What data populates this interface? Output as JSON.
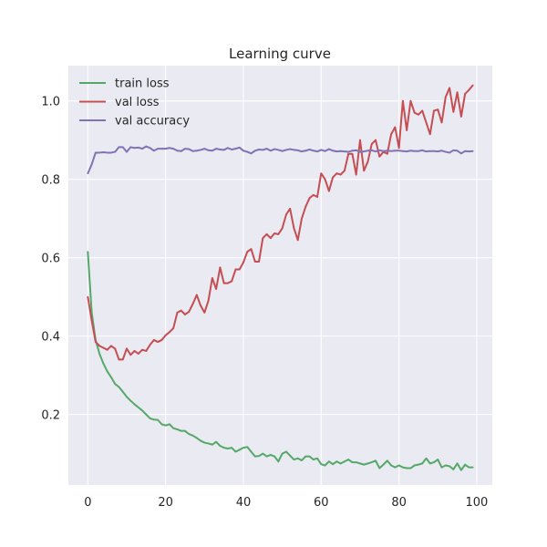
{
  "chart_data": {
    "type": "line",
    "title": "Learning curve",
    "xlabel": "",
    "ylabel": "",
    "xlim": [
      -5,
      104
    ],
    "ylim": [
      0.02,
      1.09
    ],
    "xticks": [
      0,
      20,
      40,
      60,
      80,
      100
    ],
    "yticks": [
      0.2,
      0.4,
      0.6,
      0.8,
      1.0
    ],
    "xtick_labels": [
      "0",
      "20",
      "40",
      "60",
      "80",
      "100"
    ],
    "ytick_labels": [
      "0.2",
      "0.4",
      "0.6",
      "0.8",
      "1.0"
    ],
    "grid": true,
    "legend_position": "top-left",
    "background_color": "#eaeaf2",
    "x": [
      0,
      1,
      2,
      3,
      4,
      5,
      6,
      7,
      8,
      9,
      10,
      11,
      12,
      13,
      14,
      15,
      16,
      17,
      18,
      19,
      20,
      21,
      22,
      23,
      24,
      25,
      26,
      27,
      28,
      29,
      30,
      31,
      32,
      33,
      34,
      35,
      36,
      37,
      38,
      39,
      40,
      41,
      42,
      43,
      44,
      45,
      46,
      47,
      48,
      49,
      50,
      51,
      52,
      53,
      54,
      55,
      56,
      57,
      58,
      59,
      60,
      61,
      62,
      63,
      64,
      65,
      66,
      67,
      68,
      69,
      70,
      71,
      72,
      73,
      74,
      75,
      76,
      77,
      78,
      79,
      80,
      81,
      82,
      83,
      84,
      85,
      86,
      87,
      88,
      89,
      90,
      91,
      92,
      93,
      94,
      95,
      96,
      97,
      98,
      99
    ],
    "series": [
      {
        "name": "train loss",
        "color": "#55a868",
        "values": [
          0.615,
          0.46,
          0.39,
          0.355,
          0.33,
          0.31,
          0.295,
          0.278,
          0.27,
          0.258,
          0.245,
          0.235,
          0.226,
          0.218,
          0.21,
          0.2,
          0.19,
          0.187,
          0.186,
          0.175,
          0.172,
          0.175,
          0.165,
          0.162,
          0.158,
          0.158,
          0.15,
          0.146,
          0.14,
          0.133,
          0.128,
          0.126,
          0.123,
          0.13,
          0.12,
          0.115,
          0.113,
          0.115,
          0.105,
          0.11,
          0.115,
          0.117,
          0.105,
          0.093,
          0.094,
          0.1,
          0.093,
          0.097,
          0.093,
          0.08,
          0.1,
          0.105,
          0.095,
          0.085,
          0.088,
          0.083,
          0.093,
          0.093,
          0.085,
          0.088,
          0.073,
          0.07,
          0.08,
          0.073,
          0.08,
          0.075,
          0.08,
          0.085,
          0.078,
          0.078,
          0.075,
          0.072,
          0.075,
          0.078,
          0.082,
          0.063,
          0.072,
          0.082,
          0.07,
          0.065,
          0.07,
          0.065,
          0.063,
          0.063,
          0.07,
          0.072,
          0.075,
          0.088,
          0.075,
          0.078,
          0.085,
          0.065,
          0.07,
          0.068,
          0.06,
          0.075,
          0.058,
          0.072,
          0.065,
          0.065
        ]
      },
      {
        "name": "val loss",
        "color": "#c44e52",
        "values": [
          0.5,
          0.44,
          0.385,
          0.375,
          0.37,
          0.365,
          0.375,
          0.368,
          0.34,
          0.34,
          0.368,
          0.352,
          0.362,
          0.355,
          0.365,
          0.362,
          0.378,
          0.39,
          0.385,
          0.39,
          0.402,
          0.41,
          0.42,
          0.46,
          0.465,
          0.455,
          0.462,
          0.482,
          0.505,
          0.478,
          0.46,
          0.49,
          0.548,
          0.52,
          0.575,
          0.535,
          0.535,
          0.54,
          0.57,
          0.57,
          0.588,
          0.615,
          0.622,
          0.59,
          0.59,
          0.65,
          0.66,
          0.65,
          0.662,
          0.66,
          0.675,
          0.71,
          0.725,
          0.675,
          0.645,
          0.7,
          0.73,
          0.752,
          0.76,
          0.755,
          0.815,
          0.8,
          0.77,
          0.805,
          0.815,
          0.812,
          0.822,
          0.865,
          0.865,
          0.812,
          0.9,
          0.822,
          0.845,
          0.89,
          0.9,
          0.858,
          0.87,
          0.865,
          0.915,
          0.933,
          0.88,
          1.0,
          0.925,
          1.0,
          0.97,
          0.965,
          0.975,
          0.945,
          0.915,
          0.975,
          0.978,
          0.945,
          1.01,
          1.033,
          0.972,
          1.022,
          0.96,
          1.018,
          1.028,
          1.04
        ]
      },
      {
        "name": "val accuracy",
        "color": "#8172b3",
        "values": [
          0.815,
          0.838,
          0.868,
          0.868,
          0.869,
          0.868,
          0.868,
          0.87,
          0.882,
          0.882,
          0.87,
          0.882,
          0.88,
          0.881,
          0.878,
          0.884,
          0.88,
          0.873,
          0.878,
          0.878,
          0.878,
          0.88,
          0.878,
          0.873,
          0.872,
          0.878,
          0.877,
          0.872,
          0.873,
          0.875,
          0.878,
          0.874,
          0.873,
          0.878,
          0.876,
          0.875,
          0.88,
          0.876,
          0.878,
          0.881,
          0.873,
          0.87,
          0.866,
          0.873,
          0.876,
          0.875,
          0.878,
          0.873,
          0.877,
          0.875,
          0.872,
          0.875,
          0.877,
          0.875,
          0.874,
          0.871,
          0.873,
          0.876,
          0.873,
          0.871,
          0.875,
          0.872,
          0.877,
          0.873,
          0.871,
          0.872,
          0.871,
          0.87,
          0.873,
          0.874,
          0.87,
          0.871,
          0.873,
          0.874,
          0.871,
          0.874,
          0.872,
          0.873,
          0.872,
          0.873,
          0.873,
          0.872,
          0.871,
          0.873,
          0.872,
          0.872,
          0.874,
          0.871,
          0.872,
          0.872,
          0.871,
          0.873,
          0.87,
          0.868,
          0.874,
          0.873,
          0.866,
          0.872,
          0.871,
          0.872
        ]
      }
    ]
  }
}
